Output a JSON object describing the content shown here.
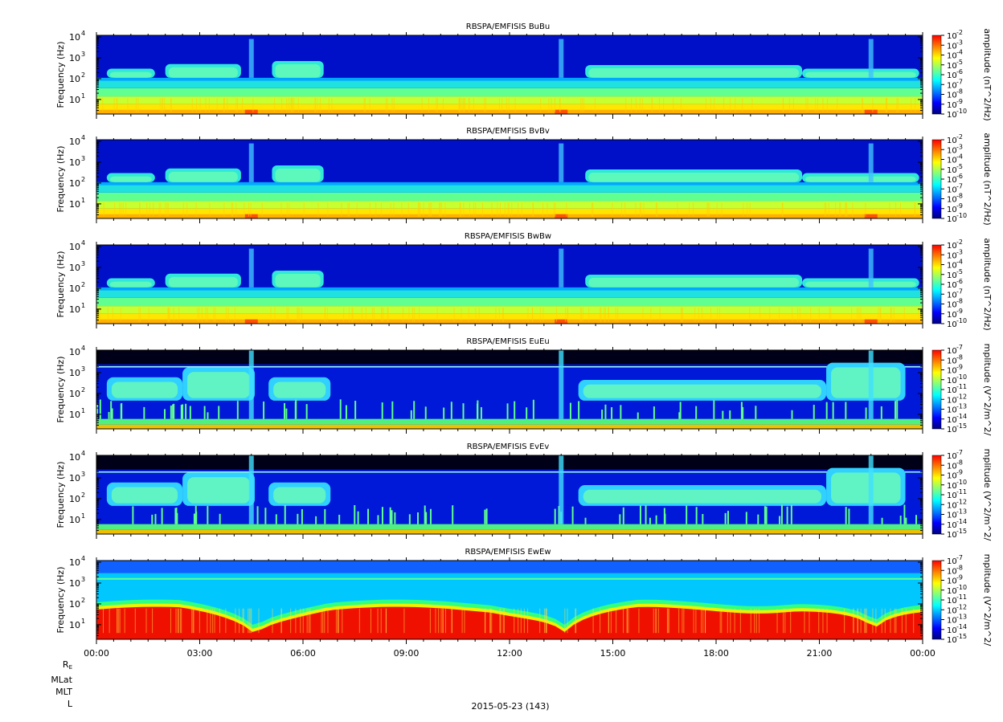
{
  "chart_data": {
    "type": "heatmap",
    "x_ticks": [
      "00:00",
      "03:00",
      "06:00",
      "09:00",
      "12:00",
      "15:00",
      "18:00",
      "21:00",
      "00:00"
    ],
    "x_range_hours": [
      0,
      24
    ],
    "y_scale": "log",
    "y_range_hz": [
      2,
      12000
    ],
    "y_ticks": [
      {
        "base": "10",
        "exp": "1",
        "value": 10
      },
      {
        "base": "10",
        "exp": "2",
        "value": 100
      },
      {
        "base": "10",
        "exp": "3",
        "value": 1000
      },
      {
        "base": "10",
        "exp": "4",
        "value": 10000
      }
    ],
    "colormap": [
      "#00007f",
      "#0000ff",
      "#0080ff",
      "#00ffff",
      "#80ff80",
      "#ffff00",
      "#ff8000",
      "#ff0000"
    ],
    "panels": [
      {
        "title": "RBSPA/EMFISIS  BuBu",
        "ylabel": "Frequency (Hz)",
        "colorbar_label": "amplitude (nT^2/Hz)",
        "colorbar_ticks": [
          "-2",
          "-3",
          "-4",
          "-5",
          "-6",
          "-7",
          "-8",
          "-9",
          "-10"
        ],
        "kind": "B"
      },
      {
        "title": "RBSPA/EMFISIS  BvBv",
        "ylabel": "Frequency (Hz)",
        "colorbar_label": "amplitude (nT^2/Hz)",
        "colorbar_ticks": [
          "-2",
          "-3",
          "-4",
          "-5",
          "-6",
          "-7",
          "-8",
          "-9",
          "-10"
        ],
        "kind": "B"
      },
      {
        "title": "RBSPA/EMFISIS  BwBw",
        "ylabel": "Frequency (Hz)",
        "colorbar_label": "amplitude (nT^2/Hz)",
        "colorbar_ticks": [
          "-2",
          "-3",
          "-4",
          "-5",
          "-6",
          "-7",
          "-8",
          "-9",
          "-10"
        ],
        "kind": "B"
      },
      {
        "title": "RBSPA/EMFISIS  EuEu",
        "ylabel": "Frequency (Hz)",
        "colorbar_label": "mplitude (V^2/m^2/",
        "colorbar_ticks": [
          "-7",
          "-8",
          "-9",
          "-10",
          "-11",
          "-12",
          "-13",
          "-14",
          "-15"
        ],
        "kind": "E"
      },
      {
        "title": "RBSPA/EMFISIS  EvEv",
        "ylabel": "Frequency (Hz)",
        "colorbar_label": "mplitude (V^2/m^2/",
        "colorbar_ticks": [
          "-7",
          "-8",
          "-9",
          "-10",
          "-11",
          "-12",
          "-13",
          "-14",
          "-15"
        ],
        "kind": "E"
      },
      {
        "title": "RBSPA/EMFISIS  EwEw",
        "ylabel": "Frequency (Hz)",
        "colorbar_label": "mplitude (V^2/m^2/",
        "colorbar_ticks": [
          "-7",
          "-8",
          "-9",
          "-10",
          "-11",
          "-12",
          "-13",
          "-14",
          "-15"
        ],
        "kind": "Ew"
      }
    ],
    "colorbar_tick_base": "10"
  },
  "footer": {
    "row_labels": [
      {
        "main": "R",
        "sub": "E"
      },
      {
        "main": "MLat",
        "sub": ""
      },
      {
        "main": "MLT",
        "sub": ""
      },
      {
        "main": "L",
        "sub": ""
      }
    ],
    "date": "2015-05-23 (143)"
  }
}
